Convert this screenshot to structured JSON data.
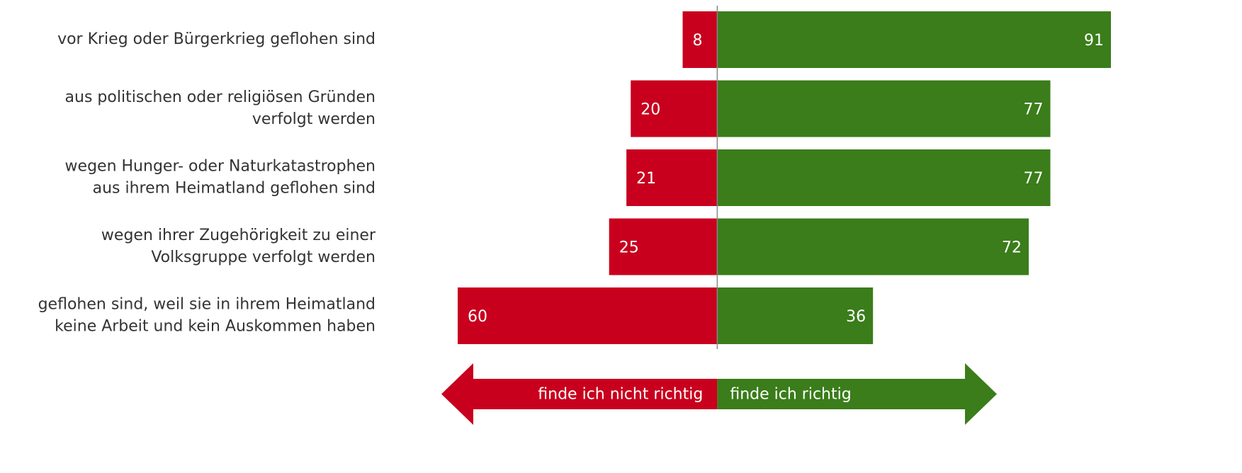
{
  "chart_data": {
    "type": "diverging-bar",
    "categories": [
      [
        "vor Krieg oder Bürgerkrieg geflohen sind"
      ],
      [
        "aus politischen oder religiösen Gründen",
        "verfolgt werden"
      ],
      [
        "wegen Hunger- oder Naturkatastrophen",
        "aus ihrem Heimatland geflohen sind"
      ],
      [
        "wegen ihrer Zugehörigkeit zu einer",
        "Volksgruppe verfolgt werden"
      ],
      [
        "geflohen sind, weil sie in ihrem Heimatland",
        "keine Arbeit und kein Auskommen haben"
      ]
    ],
    "series": [
      {
        "name": "finde ich nicht richtig",
        "color": "#c8001e",
        "values": [
          8,
          20,
          21,
          25,
          60
        ]
      },
      {
        "name": "finde ich richtig",
        "color": "#3a7d1a",
        "values": [
          91,
          77,
          77,
          72,
          36
        ]
      }
    ],
    "xlim": [
      -60,
      91
    ]
  }
}
